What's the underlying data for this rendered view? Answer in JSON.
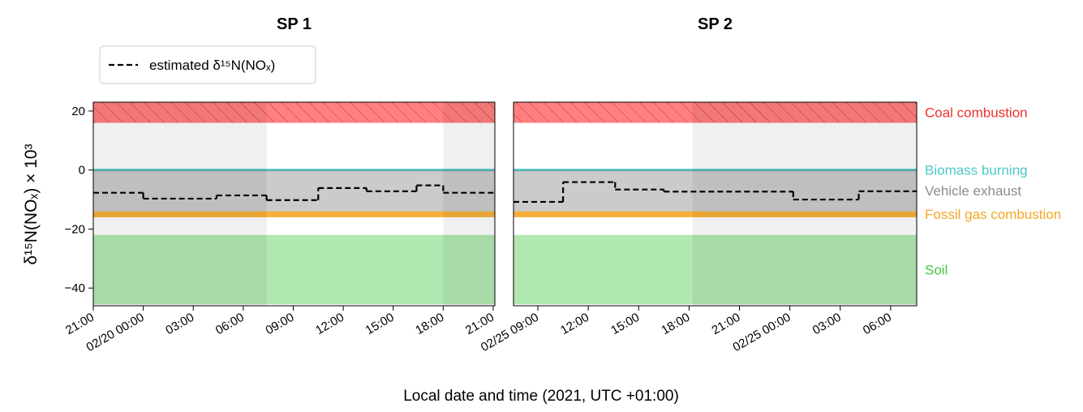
{
  "chart_data": [
    {
      "type": "line",
      "title": "SP 1",
      "ylabel": "δ¹⁵N(NOₓ) × 10³",
      "x": [
        21,
        24,
        28.4,
        31.4,
        34.5,
        37.4,
        40.4,
        42
      ],
      "series": [
        {
          "name": "estimated δ¹⁵N(NOₓ)",
          "color": "#000000",
          "values": [
            -7.7,
            -9.7,
            -8.6,
            -10.2,
            -6.1,
            -7.2,
            -5.2,
            -7.7
          ]
        }
      ],
      "xlim": [
        21,
        45.1
      ],
      "xticks": [
        {
          "value": 21,
          "label": "21:00"
        },
        {
          "value": 24,
          "label": "02/20 00:00"
        },
        {
          "value": 27,
          "label": "03:00"
        },
        {
          "value": 30,
          "label": "06:00"
        },
        {
          "value": 33,
          "label": "09:00"
        },
        {
          "value": 36,
          "label": "12:00"
        },
        {
          "value": 39,
          "label": "15:00"
        },
        {
          "value": 42,
          "label": "18:00"
        },
        {
          "value": 45,
          "label": "21:00"
        }
      ],
      "ylim": [
        -46,
        23
      ],
      "yticks": [
        {
          "value": -40,
          "label": "−40"
        },
        {
          "value": -20,
          "label": "−20"
        },
        0,
        20
      ],
      "shaded_spans": [
        [
          21,
          31.4
        ],
        [
          42,
          45.1
        ]
      ]
    },
    {
      "type": "line",
      "title": "SP 2",
      "x": [
        7.55,
        10.5,
        13.6,
        16.5,
        24.2,
        28.1
      ],
      "series": [
        {
          "color": "#000000",
          "values": [
            -10.8,
            -4.1,
            -6.6,
            -7.3,
            -10,
            -7.2
          ]
        }
      ],
      "xlim": [
        7.55,
        31.55
      ],
      "xticks": [
        {
          "value": 9,
          "label": "02/25 09:00"
        },
        {
          "value": 12,
          "label": "12:00"
        },
        {
          "value": 15,
          "label": "15:00"
        },
        {
          "value": 18,
          "label": "18:00"
        },
        {
          "value": 21,
          "label": "21:00"
        },
        {
          "value": 24,
          "label": "02/25 00:00"
        },
        {
          "value": 27,
          "label": "03:00"
        },
        {
          "value": 30,
          "label": "06:00"
        }
      ],
      "ylim": [
        -46,
        23
      ],
      "shaded_spans": [
        [
          18.2,
          31.55
        ]
      ]
    }
  ],
  "xlabel": "Local date and time (2021, UTC +01:00)",
  "sources": [
    {
      "name": "Coal combustion",
      "color": "#f03030",
      "range": [
        16,
        23
      ],
      "hatch": true
    },
    {
      "name": "Biomass burning",
      "color": "#4cc8c8",
      "range": [
        0,
        0
      ]
    },
    {
      "name": "Vehicle exhaust",
      "color": "#8c8c8c",
      "range": [
        -14,
        0
      ]
    },
    {
      "name": "Fossil gas combustion",
      "color": "#f5a623",
      "range": [
        -16,
        -14
      ]
    },
    {
      "name": "Soil",
      "color": "#44c844",
      "range": [
        -45.5,
        -22
      ]
    }
  ]
}
